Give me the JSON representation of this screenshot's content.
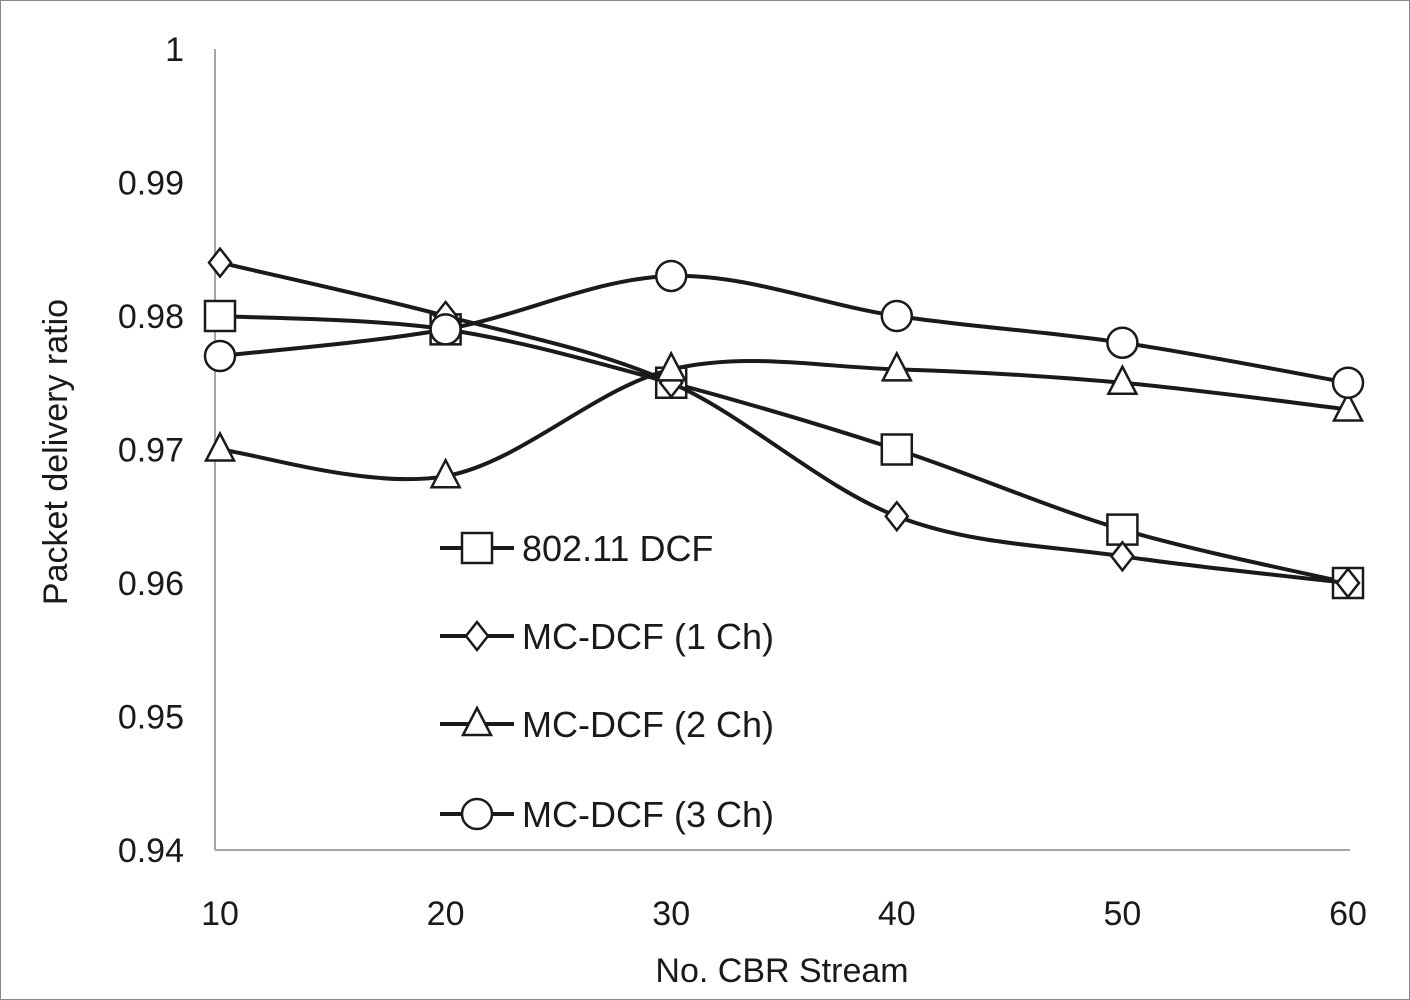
{
  "chart_data": {
    "type": "line",
    "title": "",
    "xlabel": "No. CBR Stream",
    "ylabel": "Packet delivery ratio",
    "x": [
      10,
      20,
      30,
      40,
      50,
      60
    ],
    "x_tick_labels": [
      "10",
      "20",
      "30",
      "40",
      "50",
      "60"
    ],
    "ylim": [
      0.94,
      1
    ],
    "y_tick_labels": [
      "0.94",
      "0.95",
      "0.96",
      "0.97",
      "0.98",
      "0.99",
      "1"
    ],
    "y_ticks": [
      0.94,
      0.95,
      0.96,
      0.97,
      0.98,
      0.99,
      1
    ],
    "grid": false,
    "smooth": true,
    "legend_position": "inside-bottom-left",
    "series": [
      {
        "name": "802.11 DCF",
        "marker": "square",
        "values": [
          0.98,
          0.979,
          0.975,
          0.97,
          0.964,
          0.96
        ]
      },
      {
        "name": "MC-DCF (1 Ch)",
        "marker": "diamond",
        "values": [
          0.984,
          0.98,
          0.975,
          0.965,
          0.962,
          0.96
        ]
      },
      {
        "name": "MC-DCF (2 Ch)",
        "marker": "triangle",
        "values": [
          0.97,
          0.968,
          0.976,
          0.976,
          0.975,
          0.973
        ]
      },
      {
        "name": "MC-DCF (3 Ch)",
        "marker": "circle",
        "values": [
          0.977,
          0.979,
          0.983,
          0.98,
          0.978,
          0.975
        ]
      }
    ],
    "line_color": "#1a1a1a",
    "axis_color": "#a6a6a6"
  }
}
